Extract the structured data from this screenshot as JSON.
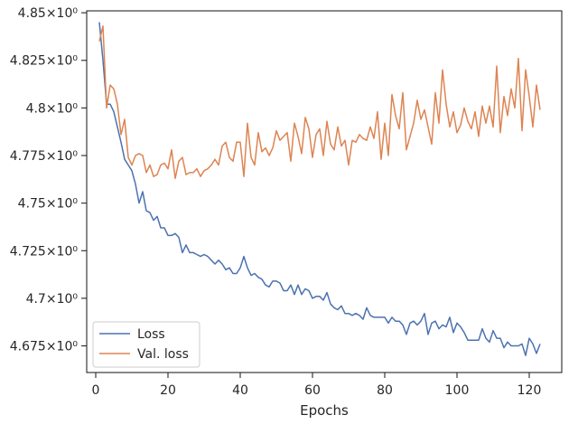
{
  "chart_data": {
    "type": "line",
    "xlabel": "Epochs",
    "ylabel": "",
    "xlim": [
      -2.5,
      129
    ],
    "ylim": [
      4.661,
      4.851
    ],
    "x_ticks": [
      0,
      20,
      40,
      60,
      80,
      100,
      120
    ],
    "y_ticks": [
      4.675,
      4.7,
      4.725,
      4.75,
      4.775,
      4.8,
      4.825,
      4.85
    ],
    "y_tick_labels": [
      "4.675×10⁰",
      "4.7×10⁰",
      "4.725×10⁰",
      "4.75×10⁰",
      "4.775×10⁰",
      "4.8×10⁰",
      "4.825×10⁰",
      "4.85×10⁰"
    ],
    "legend_position": "lower-left",
    "series": [
      {
        "name": "Loss",
        "color": "#4c72b0",
        "x": [
          1,
          2,
          3,
          4,
          5,
          6,
          7,
          8,
          9,
          10,
          11,
          12,
          13,
          14,
          15,
          16,
          17,
          18,
          19,
          20,
          21,
          22,
          23,
          24,
          25,
          26,
          27,
          28,
          29,
          30,
          31,
          32,
          33,
          34,
          35,
          36,
          37,
          38,
          39,
          40,
          41,
          42,
          43,
          44,
          45,
          46,
          47,
          48,
          49,
          50,
          51,
          52,
          53,
          54,
          55,
          56,
          57,
          58,
          59,
          60,
          61,
          62,
          63,
          64,
          65,
          66,
          67,
          68,
          69,
          70,
          71,
          72,
          73,
          74,
          75,
          76,
          77,
          78,
          79,
          80,
          81,
          82,
          83,
          84,
          85,
          86,
          87,
          88,
          89,
          90,
          91,
          92,
          93,
          94,
          95,
          96,
          97,
          98,
          99,
          100,
          101,
          102,
          103,
          104,
          105,
          106,
          107,
          108,
          109,
          110,
          111,
          112,
          113,
          114,
          115,
          116,
          117,
          118,
          119,
          120,
          121,
          122,
          123
        ],
        "values": [
          4.845,
          4.825,
          4.802,
          4.802,
          4.798,
          4.79,
          4.782,
          4.773,
          4.77,
          4.767,
          4.76,
          4.75,
          4.756,
          4.746,
          4.745,
          4.741,
          4.743,
          4.737,
          4.737,
          4.733,
          4.733,
          4.734,
          4.732,
          4.724,
          4.728,
          4.724,
          4.724,
          4.723,
          4.722,
          4.723,
          4.722,
          4.72,
          4.718,
          4.72,
          4.718,
          4.715,
          4.716,
          4.713,
          4.713,
          4.716,
          4.722,
          4.716,
          4.712,
          4.713,
          4.711,
          4.71,
          4.707,
          4.706,
          4.709,
          4.709,
          4.708,
          4.704,
          4.704,
          4.707,
          4.702,
          4.707,
          4.702,
          4.705,
          4.704,
          4.7,
          4.701,
          4.701,
          4.699,
          4.703,
          4.697,
          4.695,
          4.694,
          4.696,
          4.692,
          4.692,
          4.691,
          4.692,
          4.691,
          4.689,
          4.695,
          4.691,
          4.69,
          4.69,
          4.69,
          4.69,
          4.687,
          4.69,
          4.688,
          4.688,
          4.686,
          4.681,
          4.687,
          4.688,
          4.686,
          4.688,
          4.692,
          4.681,
          4.687,
          4.688,
          4.684,
          4.686,
          4.685,
          4.69,
          4.682,
          4.687,
          4.685,
          4.682,
          4.678,
          4.678,
          4.678,
          4.678,
          4.684,
          4.679,
          4.677,
          4.683,
          4.679,
          4.679,
          4.674,
          4.677,
          4.675,
          4.675,
          4.675,
          4.676,
          4.67,
          4.679,
          4.676,
          4.671,
          4.676
        ]
      },
      {
        "name": "Val. loss",
        "color": "#dd8452",
        "x": [
          1,
          2,
          3,
          4,
          5,
          6,
          7,
          8,
          9,
          10,
          11,
          12,
          13,
          14,
          15,
          16,
          17,
          18,
          19,
          20,
          21,
          22,
          23,
          24,
          25,
          26,
          27,
          28,
          29,
          30,
          31,
          32,
          33,
          34,
          35,
          36,
          37,
          38,
          39,
          40,
          41,
          42,
          43,
          44,
          45,
          46,
          47,
          48,
          49,
          50,
          51,
          52,
          53,
          54,
          55,
          56,
          57,
          58,
          59,
          60,
          61,
          62,
          63,
          64,
          65,
          66,
          67,
          68,
          69,
          70,
          71,
          72,
          73,
          74,
          75,
          76,
          77,
          78,
          79,
          80,
          81,
          82,
          83,
          84,
          85,
          86,
          87,
          88,
          89,
          90,
          91,
          92,
          93,
          94,
          95,
          96,
          97,
          98,
          99,
          100,
          101,
          102,
          103,
          104,
          105,
          106,
          107,
          108,
          109,
          110,
          111,
          112,
          113,
          114,
          115,
          116,
          117,
          118,
          119,
          120,
          121,
          122,
          123
        ],
        "values": [
          4.835,
          4.843,
          4.8,
          4.812,
          4.81,
          4.802,
          4.786,
          4.794,
          4.774,
          4.77,
          4.775,
          4.776,
          4.775,
          4.766,
          4.77,
          4.764,
          4.765,
          4.77,
          4.771,
          4.768,
          4.778,
          4.763,
          4.772,
          4.774,
          4.765,
          4.766,
          4.766,
          4.768,
          4.764,
          4.767,
          4.768,
          4.77,
          4.773,
          4.77,
          4.78,
          4.782,
          4.774,
          4.772,
          4.782,
          4.782,
          4.764,
          4.792,
          4.774,
          4.77,
          4.787,
          4.777,
          4.779,
          4.775,
          4.779,
          4.788,
          4.783,
          4.785,
          4.787,
          4.772,
          4.792,
          4.785,
          4.776,
          4.795,
          4.789,
          4.774,
          4.786,
          4.789,
          4.775,
          4.793,
          4.781,
          4.778,
          4.79,
          4.78,
          4.783,
          4.77,
          4.783,
          4.782,
          4.786,
          4.784,
          4.783,
          4.79,
          4.784,
          4.798,
          4.773,
          4.792,
          4.775,
          4.807,
          4.796,
          4.789,
          4.808,
          4.778,
          4.785,
          4.792,
          4.804,
          4.794,
          4.799,
          4.79,
          4.781,
          4.808,
          4.792,
          4.82,
          4.802,
          4.79,
          4.798,
          4.787,
          4.791,
          4.8,
          4.793,
          4.789,
          4.798,
          4.785,
          4.801,
          4.792,
          4.801,
          4.79,
          4.822,
          4.787,
          4.806,
          4.796,
          4.81,
          4.8,
          4.826,
          4.788,
          4.82,
          4.806,
          4.79,
          4.812,
          4.799
        ]
      }
    ]
  }
}
